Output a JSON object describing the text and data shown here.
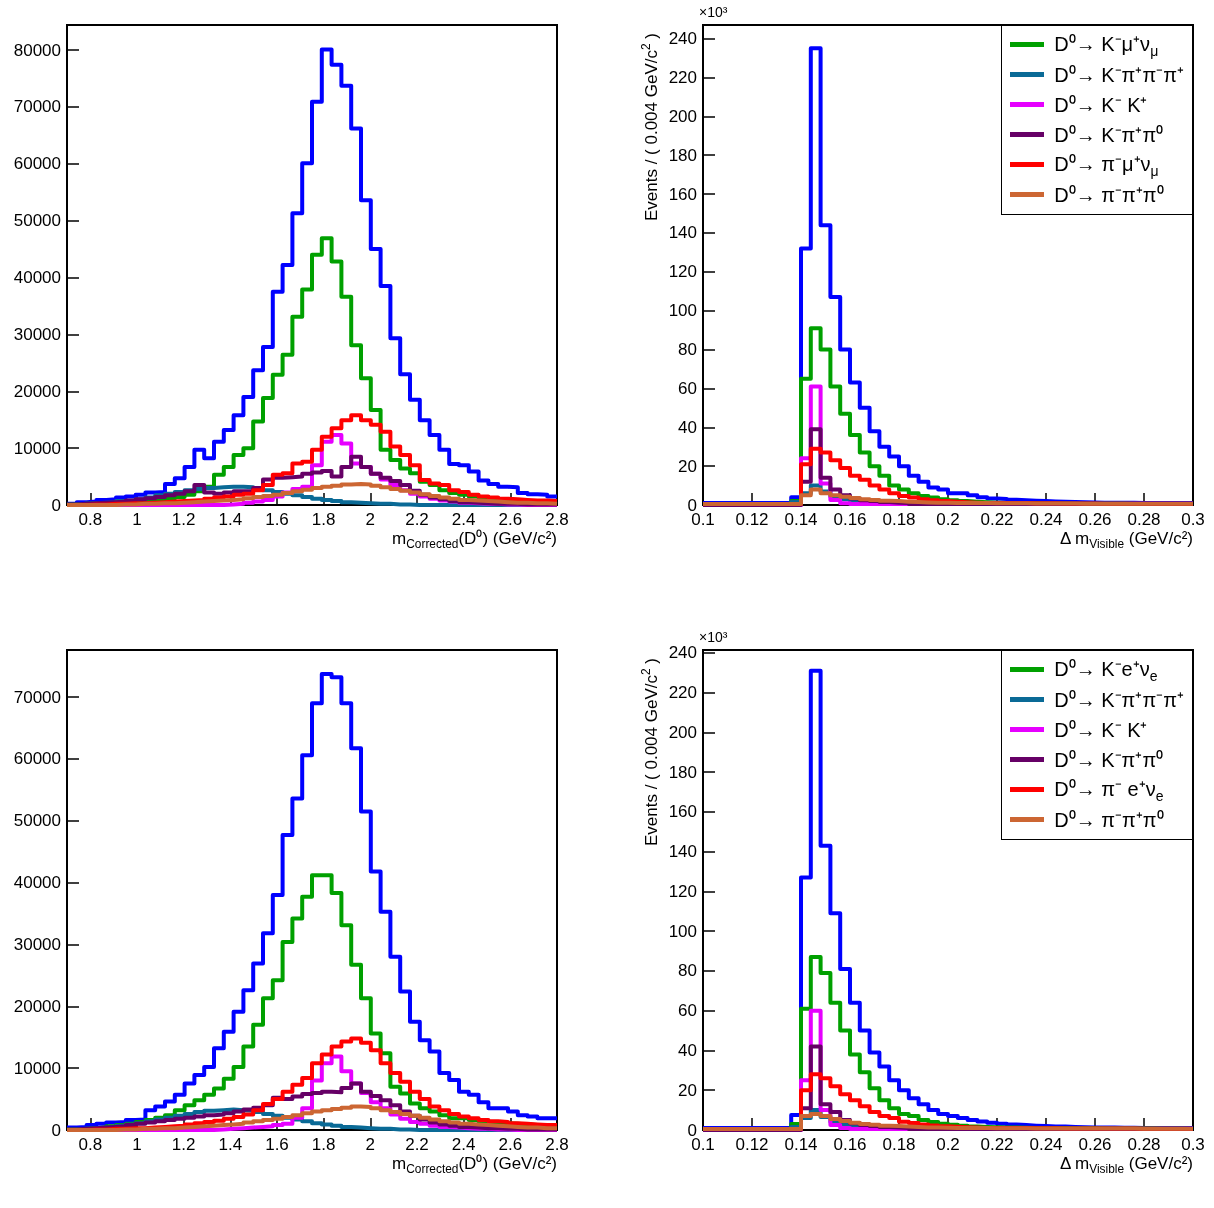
{
  "chart_data": [
    {
      "type": "histogram",
      "xlabel": "m$_{Corrected}$(D⁰) (GeV/c²)",
      "xlim": [
        0.7,
        2.8
      ],
      "xticks": [
        0.8,
        1,
        1.2,
        1.4,
        1.6,
        1.8,
        2,
        2.2,
        2.4,
        2.6,
        2.8
      ],
      "ylim": [
        0,
        84400
      ],
      "yticks": [
        0,
        10000,
        20000,
        30000,
        40000,
        50000,
        60000,
        70000,
        80000
      ],
      "legend": false,
      "bins": [
        0.7,
        0.742,
        0.784,
        0.826,
        0.868,
        0.91,
        0.952,
        0.994,
        1.036,
        1.078,
        1.12,
        1.162,
        1.204,
        1.246,
        1.288,
        1.33,
        1.372,
        1.414,
        1.456,
        1.498,
        1.54,
        1.582,
        1.624,
        1.666,
        1.708,
        1.75,
        1.792,
        1.834,
        1.876,
        1.918,
        1.96,
        2.002,
        2.044,
        2.086,
        2.128,
        2.17,
        2.212,
        2.254,
        2.296,
        2.338,
        2.38,
        2.422,
        2.464,
        2.506,
        2.548,
        2.59,
        2.632,
        2.674,
        2.716,
        2.758,
        2.8
      ],
      "series": [
        {
          "color": "#0000ff",
          "values": [
            200,
            500,
            600,
            900,
            1000,
            1300,
            1500,
            1800,
            2200,
            2300,
            3700,
            4700,
            6700,
            9700,
            8200,
            11100,
            13200,
            15800,
            19000,
            23700,
            27800,
            37500,
            42200,
            51300,
            60100,
            70900,
            80100,
            77400,
            73700,
            66200,
            53600,
            45000,
            38500,
            29300,
            23000,
            18500,
            14900,
            12300,
            9700,
            7200,
            7000,
            5900,
            4300,
            3700,
            3200,
            3100,
            2100,
            1900,
            1800,
            1500
          ]
        },
        {
          "color": "#00a000",
          "values": [
            100,
            200,
            200,
            300,
            300,
            400,
            500,
            600,
            700,
            900,
            1100,
            1400,
            1800,
            2400,
            3200,
            5300,
            6700,
            8800,
            10000,
            14700,
            18800,
            22900,
            26400,
            33100,
            37900,
            44000,
            46900,
            42800,
            36600,
            28100,
            22300,
            16700,
            9700,
            7900,
            6400,
            5600,
            4100,
            3500,
            2600,
            2100,
            1800,
            1500,
            1200,
            1000,
            900,
            800,
            700,
            600,
            500,
            500
          ]
        },
        {
          "color": "#0a6a96",
          "values": [
            100,
            200,
            300,
            400,
            500,
            700,
            800,
            1000,
            1300,
            1700,
            2000,
            2300,
            2600,
            2800,
            3000,
            3100,
            3200,
            3200,
            3100,
            2900,
            2600,
            2300,
            2000,
            1700,
            1400,
            1100,
            900,
            700,
            500,
            400,
            300,
            200,
            200,
            100,
            100,
            0,
            0,
            0,
            0,
            0,
            0,
            0,
            0,
            0,
            0,
            0,
            0,
            0,
            0,
            0
          ]
        },
        {
          "color": "#e600ff",
          "values": [
            0,
            0,
            0,
            0,
            0,
            0,
            0,
            0,
            0,
            0,
            0,
            0,
            0,
            0,
            0,
            0,
            100,
            200,
            400,
            600,
            900,
            1500,
            2200,
            2800,
            3200,
            7000,
            11100,
            12300,
            10800,
            7300,
            6700,
            5500,
            4500,
            3500,
            2600,
            2000,
            1500,
            1100,
            800,
            600,
            400,
            300,
            200,
            200,
            100,
            100,
            0,
            0,
            0,
            0
          ]
        },
        {
          "color": "#660066",
          "values": [
            100,
            200,
            300,
            400,
            500,
            600,
            800,
            1000,
            1200,
            1400,
            1700,
            2000,
            2400,
            3500,
            2200,
            2000,
            2200,
            2400,
            2400,
            3000,
            4500,
            4800,
            4900,
            5000,
            5500,
            5700,
            6000,
            5000,
            6700,
            8500,
            6700,
            5500,
            4800,
            4200,
            3500,
            2500,
            1800,
            1300,
            1000,
            700,
            500,
            400,
            300,
            200,
            200,
            200,
            100,
            100,
            100,
            100
          ]
        },
        {
          "color": "#ff0000",
          "values": [
            0,
            0,
            100,
            100,
            200,
            200,
            300,
            300,
            400,
            500,
            600,
            700,
            800,
            900,
            1100,
            1300,
            1500,
            1800,
            2000,
            2600,
            3500,
            5300,
            5600,
            7300,
            7600,
            9700,
            12000,
            13500,
            14900,
            15800,
            14900,
            14100,
            12900,
            10300,
            8800,
            7000,
            4400,
            3800,
            3500,
            2600,
            2300,
            1800,
            1500,
            1300,
            1100,
            1000,
            900,
            800,
            800,
            700
          ]
        },
        {
          "color": "#cc6633",
          "values": [
            0,
            0,
            0,
            0,
            0,
            100,
            100,
            200,
            200,
            300,
            300,
            400,
            500,
            600,
            700,
            800,
            900,
            1000,
            1200,
            1400,
            1600,
            1800,
            2100,
            2400,
            2700,
            3000,
            3200,
            3400,
            3600,
            3700,
            3600,
            3400,
            3100,
            2800,
            2500,
            2200,
            1900,
            1600,
            1300,
            1100,
            900,
            800,
            700,
            600,
            500,
            400,
            400,
            300,
            300,
            200
          ]
        }
      ]
    },
    {
      "type": "histogram",
      "xlabel": "Δ m$_{Visible}$ (GeV/c²)",
      "ylabel": "Events / ( 0.004 GeV/c$^{2}$ )",
      "annotations": [
        "×10³"
      ],
      "xlim": [
        0.1,
        0.3
      ],
      "xticks": [
        0.1,
        0.12,
        0.14,
        0.16,
        0.18,
        0.2,
        0.22,
        0.24,
        0.26,
        0.28,
        0.3
      ],
      "ylim": [
        0,
        247
      ],
      "yticks": [
        0,
        20,
        40,
        60,
        80,
        100,
        120,
        140,
        160,
        180,
        200,
        220,
        240
      ],
      "legend": "top right",
      "bins": [
        0.1,
        0.104,
        0.108,
        0.112,
        0.116,
        0.12,
        0.124,
        0.128,
        0.132,
        0.136,
        0.14,
        0.144,
        0.148,
        0.152,
        0.156,
        0.16,
        0.164,
        0.168,
        0.172,
        0.176,
        0.18,
        0.184,
        0.188,
        0.192,
        0.196,
        0.2,
        0.204,
        0.208,
        0.212,
        0.216,
        0.22,
        0.224,
        0.228,
        0.232,
        0.236,
        0.24,
        0.244,
        0.248,
        0.252,
        0.256,
        0.26,
        0.264,
        0.268,
        0.272,
        0.276,
        0.28,
        0.284,
        0.288,
        0.292,
        0.296,
        0.3
      ],
      "series": [
        {
          "color": "#0000ff",
          "values": [
            1,
            1,
            1,
            1,
            1,
            1,
            1,
            1,
            1,
            4,
            132,
            235,
            144,
            107,
            80,
            63,
            50,
            38,
            30,
            25,
            20,
            15,
            12,
            9,
            8,
            6,
            6,
            5,
            4,
            3.4,
            3.1,
            2.7,
            2.4,
            2.2,
            2,
            1.8,
            1.7,
            1.5,
            1.4,
            1.3,
            1.2,
            1.2,
            1.1,
            1.1,
            1,
            1,
            1,
            1,
            1,
            1
          ]
        },
        {
          "name": "D⁰→ K⁻μ⁺ν$_{μ}$",
          "color": "#00a000",
          "values": [
            0.5,
            0.5,
            0.5,
            0.5,
            0.5,
            0.5,
            0.5,
            0.5,
            0.5,
            2,
            65,
            91,
            80,
            61,
            47,
            36,
            27,
            20,
            15,
            10,
            8,
            6,
            4.6,
            3.8,
            3,
            2.5,
            2,
            1.7,
            1.4,
            1.2,
            1,
            1,
            1,
            1,
            0.8,
            0.8,
            0.8,
            0.7,
            0.7,
            0.7,
            0.6,
            0.6,
            0.6,
            0.5,
            0.5,
            0.5,
            0.5,
            0.5,
            0.5,
            0.5
          ]
        },
        {
          "name": "D⁰→ K⁻π⁺π⁻π⁺",
          "color": "#0a6a96",
          "values": [
            0.5,
            0.5,
            0.5,
            0.5,
            0.5,
            0.5,
            0.5,
            0.5,
            0.5,
            1.5,
            6,
            10,
            7,
            4.3,
            3,
            2,
            1.5,
            1,
            0.5,
            0.5,
            0.5,
            0.5,
            0.5,
            0.5,
            0.5,
            0.5,
            0.5,
            0.5,
            0.5,
            0.5,
            0.5,
            0.5,
            0.5,
            0.5,
            0.5,
            0.5,
            0.5,
            0.5,
            0.5,
            0.5,
            0.5,
            0.5,
            0.5,
            0.5,
            0.5,
            0.5,
            0.5,
            0.5,
            0.5,
            0.5
          ]
        },
        {
          "name": "D⁰→ K⁻ K⁺",
          "color": "#e600ff",
          "values": [
            0,
            0,
            0,
            0,
            0,
            0,
            0,
            0,
            0,
            0,
            24,
            61,
            11,
            2.6,
            0.9,
            0.5,
            0.5,
            0.5,
            0.5,
            0.5,
            0.5,
            0.5,
            0.5,
            0.5,
            0.5,
            0.5,
            0.5,
            0.5,
            0.5,
            0.5,
            0.5,
            0.5,
            0.5,
            0.5,
            0.5,
            0.5,
            0.5,
            0.5,
            0.5,
            0.5,
            0.5,
            0.5,
            0.5,
            0.5,
            0.5,
            0.5,
            0.5,
            0.5,
            0.5,
            0.5
          ]
        },
        {
          "name": "D⁰→ K⁻π⁺π⁰",
          "color": "#660066",
          "values": [
            0,
            0,
            0,
            0,
            0,
            0,
            0,
            0,
            0,
            0,
            12,
            39,
            14,
            8,
            5,
            3.4,
            2.5,
            2,
            1.5,
            1.2,
            1,
            0.5,
            0.5,
            0.5,
            0.5,
            0.5,
            0.5,
            0.5,
            0.5,
            0.5,
            0.5,
            0.5,
            0.5,
            0.5,
            0.5,
            0.5,
            0.5,
            0.5,
            0.5,
            0.5,
            0.5,
            0.5,
            0.5,
            0.5,
            0.5,
            0.5,
            0.5,
            0.5,
            0.5,
            0.5
          ]
        },
        {
          "name": "D⁰→ π⁻μ⁺ν$_{μ}$",
          "color": "#ff0000",
          "values": [
            0.5,
            0.5,
            0.5,
            0.5,
            0.5,
            0.5,
            0.5,
            0.5,
            0.5,
            0.5,
            21,
            29,
            27,
            23,
            19,
            15,
            13,
            10,
            8,
            6,
            4.6,
            3.8,
            3,
            2.5,
            2,
            1.7,
            1.4,
            1.2,
            1,
            1,
            1,
            1,
            1,
            0.9,
            0.9,
            0.9,
            0.8,
            0.8,
            0.8,
            0.8,
            0.7,
            0.7,
            0.7,
            0.7,
            0.6,
            0.6,
            0.6,
            0.6,
            0.6,
            0.6
          ]
        },
        {
          "name": "D⁰→ π⁻π⁺π⁰",
          "color": "#cc6633",
          "values": [
            0.5,
            0.5,
            0.5,
            0.5,
            0.5,
            0.5,
            0.5,
            0.5,
            0.5,
            0.5,
            5,
            8,
            6,
            5,
            4.3,
            3.6,
            3,
            2.6,
            2.2,
            2,
            1.7,
            1.5,
            1.3,
            1.2,
            1.1,
            1,
            1,
            1,
            1,
            0.9,
            0.9,
            0.9,
            0.9,
            0.8,
            0.8,
            0.8,
            0.8,
            0.8,
            0.7,
            0.7,
            0.7,
            0.7,
            0.7,
            0.7,
            0.6,
            0.6,
            0.6,
            0.6,
            0.6,
            0.6
          ]
        }
      ]
    },
    {
      "type": "histogram",
      "xlabel": "m$_{Corrected}$(D⁰) (GeV/c²)",
      "xlim": [
        0.7,
        2.8
      ],
      "xticks": [
        0.8,
        1,
        1.2,
        1.4,
        1.6,
        1.8,
        2,
        2.2,
        2.4,
        2.6,
        2.8
      ],
      "ylim": [
        0,
        77600
      ],
      "yticks": [
        0,
        10000,
        20000,
        30000,
        40000,
        50000,
        60000,
        70000
      ],
      "legend": false,
      "bins": [
        0.7,
        0.742,
        0.784,
        0.826,
        0.868,
        0.91,
        0.952,
        0.994,
        1.036,
        1.078,
        1.12,
        1.162,
        1.204,
        1.246,
        1.288,
        1.33,
        1.372,
        1.414,
        1.456,
        1.498,
        1.54,
        1.582,
        1.624,
        1.666,
        1.708,
        1.75,
        1.792,
        1.834,
        1.876,
        1.918,
        1.96,
        2.002,
        2.044,
        2.086,
        2.128,
        2.17,
        2.212,
        2.254,
        2.296,
        2.338,
        2.38,
        2.422,
        2.464,
        2.506,
        2.548,
        2.59,
        2.632,
        2.674,
        2.716,
        2.758,
        2.8
      ],
      "series": [
        {
          "color": "#0000ff",
          "values": [
            400,
            500,
            800,
            1000,
            1200,
            1300,
            1600,
            1700,
            3200,
            3800,
            4600,
            5700,
            7500,
            8900,
            10200,
            13200,
            15900,
            19100,
            22600,
            26900,
            31800,
            38000,
            47700,
            53600,
            60600,
            69000,
            73700,
            73200,
            69000,
            61700,
            51500,
            41800,
            35300,
            28000,
            22400,
            17500,
            14500,
            12700,
            9200,
            8100,
            6200,
            5700,
            4500,
            3500,
            3500,
            3000,
            2400,
            2200,
            1900,
            1900
          ]
        },
        {
          "color": "#00a000",
          "values": [
            100,
            200,
            300,
            400,
            600,
            800,
            1000,
            1300,
            1600,
            2000,
            2400,
            3200,
            4000,
            4800,
            5700,
            6700,
            8300,
            10200,
            13500,
            17000,
            21300,
            24200,
            30400,
            34200,
            37700,
            41200,
            41200,
            38300,
            33100,
            26700,
            21300,
            15600,
            12400,
            7000,
            5900,
            4300,
            3500,
            3000,
            2400,
            1900,
            1900,
            1600,
            1300,
            1200,
            1100,
            1000,
            900,
            800,
            800,
            700
          ]
        },
        {
          "color": "#0a6a96",
          "values": [
            100,
            200,
            300,
            400,
            500,
            700,
            900,
            1100,
            1400,
            1700,
            2000,
            2300,
            2600,
            2900,
            3100,
            3200,
            3300,
            3200,
            3100,
            2900,
            2600,
            2300,
            2000,
            1700,
            1400,
            1100,
            900,
            700,
            500,
            400,
            300,
            200,
            200,
            100,
            100,
            0,
            0,
            0,
            0,
            0,
            0,
            0,
            0,
            0,
            0,
            0,
            0,
            0,
            0,
            0
          ]
        },
        {
          "color": "#e600ff",
          "values": [
            0,
            0,
            0,
            0,
            0,
            0,
            0,
            0,
            0,
            0,
            0,
            0,
            0,
            0,
            0,
            100,
            200,
            300,
            400,
            500,
            600,
            800,
            1000,
            2000,
            3500,
            8000,
            10800,
            11900,
            9500,
            7500,
            6000,
            4500,
            3500,
            2500,
            1800,
            1300,
            1000,
            700,
            500,
            400,
            300,
            200,
            200,
            100,
            100,
            0,
            0,
            0,
            0,
            0
          ]
        },
        {
          "color": "#660066",
          "values": [
            100,
            200,
            300,
            400,
            500,
            600,
            800,
            1000,
            1200,
            1400,
            1600,
            1800,
            2000,
            2200,
            2400,
            2500,
            2700,
            3000,
            3300,
            3600,
            4000,
            5200,
            5000,
            5400,
            5800,
            6000,
            6200,
            6100,
            6800,
            7500,
            6200,
            5500,
            4800,
            4000,
            3000,
            2300,
            1700,
            1200,
            900,
            700,
            500,
            400,
            300,
            300,
            200,
            200,
            100,
            100,
            100,
            100
          ]
        },
        {
          "color": "#ff0000",
          "values": [
            0,
            0,
            100,
            100,
            200,
            200,
            300,
            300,
            400,
            500,
            600,
            700,
            900,
            1100,
            1300,
            1500,
            1800,
            2100,
            2500,
            3200,
            4200,
            5000,
            6200,
            7300,
            8400,
            10800,
            12200,
            13500,
            14300,
            14800,
            14100,
            12900,
            10800,
            9200,
            7800,
            6200,
            5000,
            3800,
            3200,
            2600,
            2200,
            1900,
            1600,
            1400,
            1300,
            1100,
            1000,
            900,
            800,
            800
          ]
        },
        {
          "color": "#cc6633",
          "values": [
            0,
            0,
            0,
            0,
            0,
            100,
            100,
            200,
            200,
            300,
            300,
            400,
            500,
            600,
            700,
            800,
            900,
            1000,
            1200,
            1400,
            1600,
            1800,
            2100,
            2400,
            2700,
            3000,
            3200,
            3400,
            3600,
            3800,
            3700,
            3500,
            3200,
            2900,
            2600,
            2300,
            2000,
            1700,
            1400,
            1200,
            1000,
            900,
            800,
            700,
            600,
            500,
            400,
            400,
            300,
            300
          ]
        }
      ]
    },
    {
      "type": "histogram",
      "xlabel": "Δ m$_{Visible}$ (GeV/c²)",
      "ylabel": "Events / ( 0.004 GeV/c$^{2}$ )",
      "annotations": [
        "×10³"
      ],
      "xlim": [
        0.1,
        0.3
      ],
      "xticks": [
        0.1,
        0.12,
        0.14,
        0.16,
        0.18,
        0.2,
        0.22,
        0.24,
        0.26,
        0.28,
        0.3
      ],
      "ylim": [
        0,
        241.5
      ],
      "yticks": [
        0,
        20,
        40,
        60,
        80,
        100,
        120,
        140,
        160,
        180,
        200,
        220,
        240
      ],
      "legend": "top right",
      "bins": [
        0.1,
        0.104,
        0.108,
        0.112,
        0.116,
        0.12,
        0.124,
        0.128,
        0.132,
        0.136,
        0.14,
        0.144,
        0.148,
        0.152,
        0.156,
        0.16,
        0.164,
        0.168,
        0.172,
        0.176,
        0.18,
        0.184,
        0.188,
        0.192,
        0.196,
        0.2,
        0.204,
        0.208,
        0.212,
        0.216,
        0.22,
        0.224,
        0.228,
        0.232,
        0.236,
        0.24,
        0.244,
        0.248,
        0.252,
        0.256,
        0.26,
        0.264,
        0.268,
        0.272,
        0.276,
        0.28,
        0.284,
        0.288,
        0.292,
        0.296,
        0.3
      ],
      "series": [
        {
          "color": "#0000ff",
          "values": [
            1,
            1,
            1,
            1,
            1,
            1,
            1,
            1,
            1,
            7.5,
            127,
            231,
            143,
            109,
            81,
            64,
            50,
            39,
            32,
            25,
            20,
            16,
            13,
            10,
            8,
            7,
            6,
            5,
            4.3,
            3.7,
            3.2,
            2.8,
            2.5,
            2.2,
            2,
            1.8,
            1.7,
            1.5,
            1.4,
            1.3,
            1.2,
            1.2,
            1.1,
            1.1,
            1,
            1,
            1,
            1,
            1,
            1
          ]
        },
        {
          "name": "D⁰→ K⁻e⁺ν$_{e}$",
          "color": "#00a000",
          "values": [
            0.5,
            0.5,
            0.5,
            0.5,
            0.5,
            0.5,
            0.5,
            0.5,
            0.5,
            3,
            61,
            87,
            79,
            64,
            50,
            38,
            29,
            21,
            15,
            11,
            8,
            7,
            5,
            4,
            3.2,
            2.6,
            2.1,
            1.7,
            1.5,
            1.4,
            1.3,
            1.2,
            1.1,
            1,
            1,
            1,
            1,
            0.9,
            0.9,
            0.9,
            0.8,
            0.8,
            0.8,
            0.7,
            0.7,
            0.7,
            0.6,
            0.6,
            0.6,
            0.5
          ]
        },
        {
          "name": "D⁰→ K⁻π⁺π⁻π⁺",
          "color": "#0a6a96",
          "values": [
            0.5,
            0.5,
            0.5,
            0.5,
            0.5,
            0.5,
            0.5,
            0.5,
            0.5,
            1.5,
            6,
            10,
            6.5,
            4,
            2.8,
            2,
            1.5,
            1,
            0.5,
            0.5,
            0.5,
            0.5,
            0.5,
            0.5,
            0.5,
            0.5,
            0.5,
            0.5,
            0.5,
            0.5,
            0.5,
            0.5,
            0.5,
            0.5,
            0.5,
            0.5,
            0.5,
            0.5,
            0.5,
            0.5,
            0.5,
            0.5,
            0.5,
            0.5,
            0.5,
            0.5,
            0.5,
            0.5,
            0.5,
            0.5
          ]
        },
        {
          "name": "D⁰→ K⁻ K⁺",
          "color": "#e600ff",
          "values": [
            0,
            0,
            0,
            0,
            0,
            0,
            0,
            0,
            0,
            0,
            25,
            60,
            10,
            2.5,
            1,
            0.5,
            0.5,
            0.5,
            0.5,
            0.5,
            0.5,
            0.5,
            0.5,
            0.5,
            0.5,
            0.5,
            0.5,
            0.5,
            0.5,
            0.5,
            0.5,
            0.5,
            0.5,
            0.5,
            0.5,
            0.5,
            0.5,
            0.5,
            0.5,
            0.5,
            0.5,
            0.5,
            0.5,
            0.5,
            0.5,
            0.5,
            0.5,
            0.5,
            0.5,
            0.5
          ]
        },
        {
          "name": "D⁰→ K⁻π⁺π⁰",
          "color": "#660066",
          "values": [
            0,
            0,
            0,
            0,
            0,
            0,
            0,
            0,
            0,
            0,
            11,
            42,
            13,
            9,
            5,
            3.4,
            2.5,
            2,
            1.5,
            1.2,
            1,
            0.5,
            0.5,
            0.5,
            0.5,
            0.5,
            0.5,
            0.5,
            0.5,
            0.5,
            0.5,
            0.5,
            0.5,
            0.5,
            0.5,
            0.5,
            0.5,
            0.5,
            0.5,
            0.5,
            0.5,
            0.5,
            0.5,
            0.5,
            0.5,
            0.5,
            0.5,
            0.5,
            0.5,
            0.5
          ]
        },
        {
          "name": "D⁰→ π⁻ e⁺ν$_{e}$",
          "color": "#ff0000",
          "values": [
            0.5,
            0.5,
            0.5,
            0.5,
            0.5,
            0.5,
            0.5,
            0.5,
            0.5,
            0.5,
            20,
            28,
            26,
            22,
            18,
            15,
            12,
            9,
            7,
            6,
            4.2,
            3.5,
            2.8,
            2.3,
            1.9,
            1.6,
            1.4,
            1.2,
            1,
            1,
            1,
            1,
            1,
            0.9,
            0.9,
            0.9,
            0.8,
            0.8,
            0.8,
            0.8,
            0.7,
            0.7,
            0.7,
            0.7,
            0.6,
            0.6,
            0.6,
            0.6,
            0.6,
            0.6
          ]
        },
        {
          "name": "D⁰→ π⁻π⁺π⁰",
          "color": "#cc6633",
          "values": [
            0.5,
            0.5,
            0.5,
            0.5,
            0.5,
            0.5,
            0.5,
            0.5,
            0.5,
            0.5,
            7,
            8,
            7,
            5.5,
            4.5,
            3.7,
            3,
            2.6,
            2.2,
            2,
            1.7,
            1.5,
            1.3,
            1.2,
            1.1,
            1,
            1,
            1,
            1,
            0.9,
            0.9,
            0.9,
            0.9,
            0.8,
            0.8,
            0.8,
            0.8,
            0.8,
            0.7,
            0.7,
            0.7,
            0.7,
            0.7,
            0.7,
            0.6,
            0.6,
            0.6,
            0.6,
            0.6,
            0.6
          ]
        }
      ]
    }
  ]
}
